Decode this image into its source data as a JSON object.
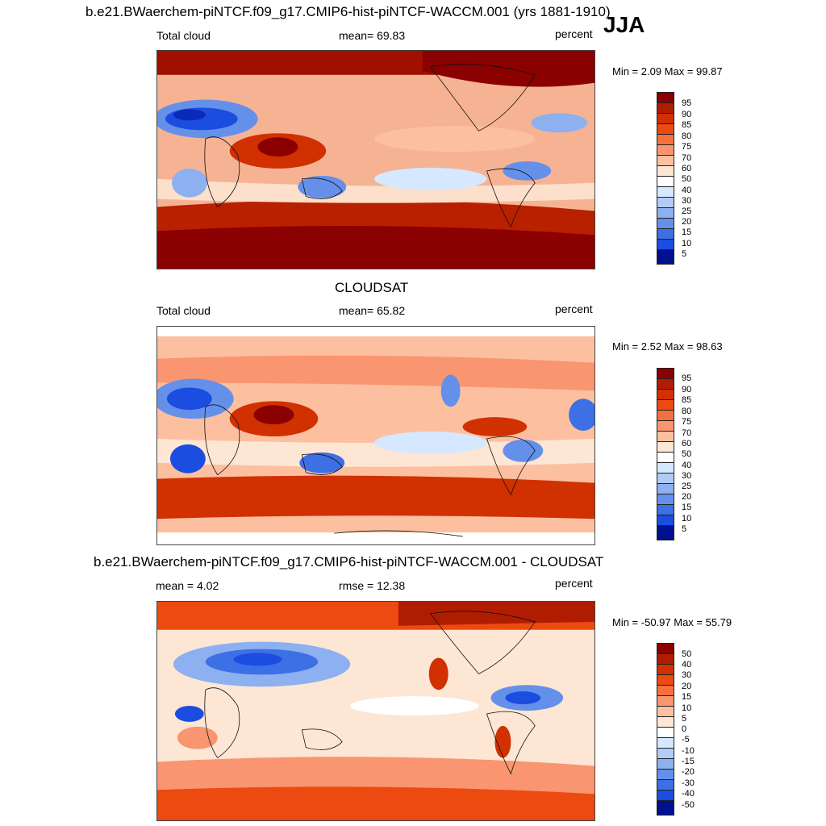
{
  "header": {
    "title": "b.e21.BWaerchem-piNTCF.f09_g17.CMIP6-hist-piNTCF-WACCM.001 (yrs 1881-1910)",
    "season": "JJA"
  },
  "panels": [
    {
      "id": "model",
      "left_label": "Total cloud",
      "mid_label": "mean=  69.83",
      "right_label": "percent",
      "minmax": "Min =   2.09 Max =  99.87",
      "colorbar_labels": [
        "95",
        "90",
        "85",
        "80",
        "75",
        "70",
        "60",
        "50",
        "40",
        "30",
        "25",
        "20",
        "15",
        "10",
        "5"
      ],
      "colors": [
        "#8b0000",
        "#b01c00",
        "#d13000",
        "#ec4a10",
        "#f5703e",
        "#f99570",
        "#fcc0a0",
        "#fde6d4",
        "#ffffff",
        "#d6e8ff",
        "#b0ccf7",
        "#8cb0f0",
        "#6590ea",
        "#3d6fe5",
        "#1a4de0",
        "#0a2ab8",
        "#001090"
      ]
    },
    {
      "id": "obs",
      "subtitle": "CLOUDSAT",
      "left_label": "Total cloud",
      "mid_label": "mean=  65.82",
      "right_label": "percent",
      "minmax": "Min =   2.52 Max =  98.63",
      "colorbar_labels": [
        "95",
        "90",
        "85",
        "80",
        "75",
        "70",
        "60",
        "50",
        "40",
        "30",
        "25",
        "20",
        "15",
        "10",
        "5"
      ],
      "colors": [
        "#8b0000",
        "#b01c00",
        "#d13000",
        "#ec4a10",
        "#f5703e",
        "#f99570",
        "#fcc0a0",
        "#fde6d4",
        "#ffffff",
        "#d6e8ff",
        "#b0ccf7",
        "#8cb0f0",
        "#6590ea",
        "#3d6fe5",
        "#1a4de0",
        "#0a2ab8",
        "#001090"
      ]
    },
    {
      "id": "diff",
      "subtitle": "b.e21.BWaerchem-piNTCF.f09_g17.CMIP6-hist-piNTCF-WACCM.001 - CLOUDSAT",
      "left_label": "mean =   4.02",
      "mid_label": "rmse =  12.38",
      "right_label": "percent",
      "minmax": "Min = -50.97 Max =  55.79",
      "colorbar_labels": [
        "50",
        "40",
        "30",
        "20",
        "15",
        "10",
        "5",
        "0",
        "-5",
        "-10",
        "-15",
        "-20",
        "-30",
        "-40",
        "-50"
      ],
      "colors": [
        "#8b0000",
        "#b01c00",
        "#d13000",
        "#ec4a10",
        "#f5703e",
        "#f99570",
        "#fcc0a0",
        "#fde6d4",
        "#ffffff",
        "#d6e8ff",
        "#b0ccf7",
        "#8cb0f0",
        "#6590ea",
        "#3d6fe5",
        "#1a4de0",
        "#0a2ab8",
        "#001090"
      ]
    }
  ]
}
